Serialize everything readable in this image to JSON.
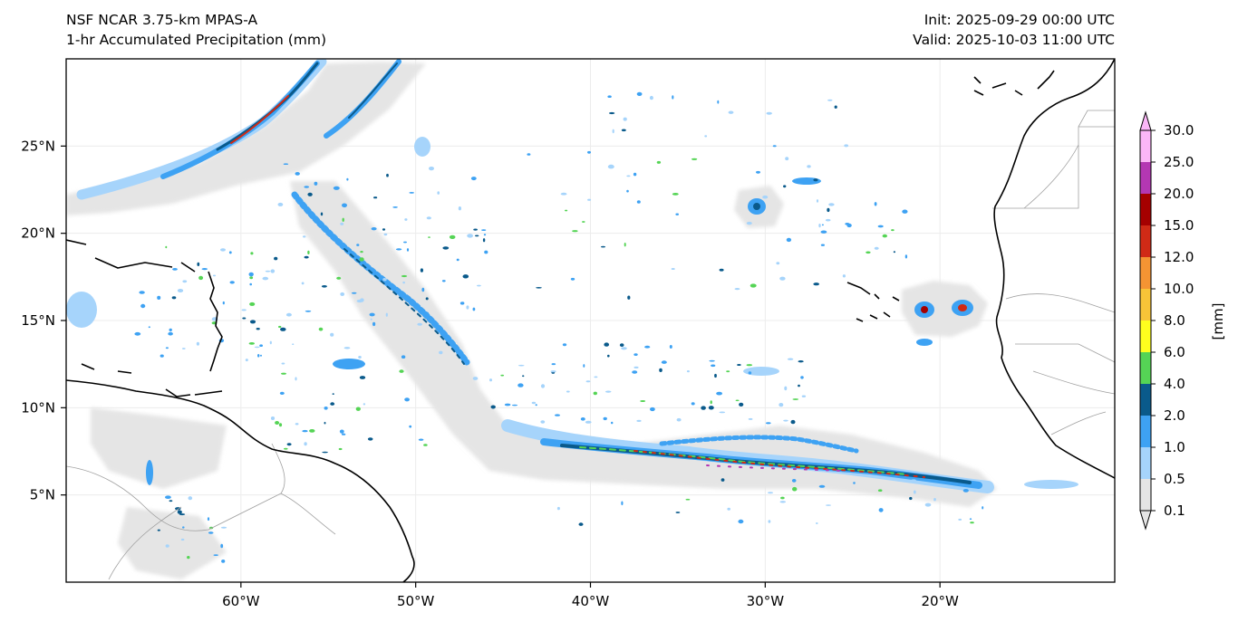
{
  "header": {
    "model": "NSF NCAR 3.75-km MPAS-A",
    "field": "1-hr Accumulated Precipitation (mm)",
    "init": "Init: 2025-09-29 00:00 UTC",
    "valid": "Valid: 2025-10-03 11:00 UTC"
  },
  "map": {
    "extent": {
      "lon": [
        -70,
        -10
      ],
      "lat": [
        0,
        30
      ]
    },
    "lon_ticks": [
      {
        "value": -60,
        "label": "60°W"
      },
      {
        "value": -50,
        "label": "50°W"
      },
      {
        "value": -40,
        "label": "40°W"
      },
      {
        "value": -30,
        "label": "30°W"
      },
      {
        "value": -20,
        "label": "20°W"
      }
    ],
    "lat_ticks": [
      {
        "value": 25,
        "label": "25°N"
      },
      {
        "value": 20,
        "label": "20°N"
      },
      {
        "value": 15,
        "label": "15°N"
      },
      {
        "value": 10,
        "label": "10°N"
      },
      {
        "value": 5,
        "label": "5°N"
      }
    ],
    "gridlines": true
  },
  "colorbar": {
    "unit_label": "[mm]",
    "extend": "both",
    "levels": [
      {
        "label": "0.1",
        "color": "#e5e5e5"
      },
      {
        "label": "0.5",
        "color": "#a6d4fb"
      },
      {
        "label": "1.0",
        "color": "#3ea2f3"
      },
      {
        "label": "2.0",
        "color": "#0a5a8b"
      },
      {
        "label": "4.0",
        "color": "#55d455"
      },
      {
        "label": "6.0",
        "color": "#ffff1e"
      },
      {
        "label": "8.0",
        "color": "#f8c438"
      },
      {
        "label": "10.0",
        "color": "#f49433"
      },
      {
        "label": "12.0",
        "color": "#d02a16"
      },
      {
        "label": "15.0",
        "color": "#a50000"
      },
      {
        "label": "20.0",
        "color": "#b437b3"
      },
      {
        "label": "25.0",
        "color": "#fbb6f7"
      },
      {
        "label": "30.0",
        "color": "#ffffff"
      }
    ]
  }
}
